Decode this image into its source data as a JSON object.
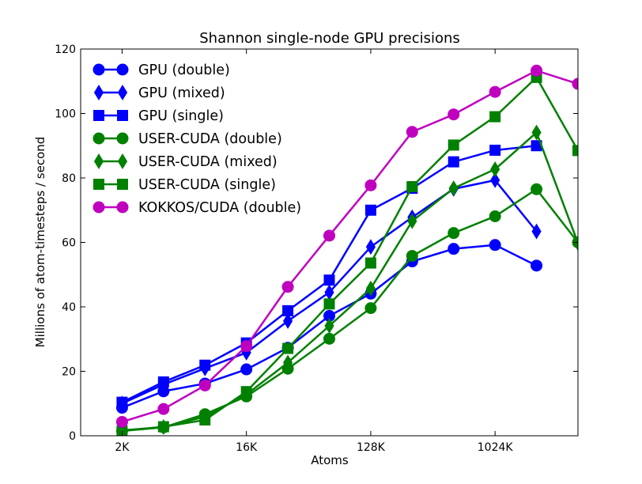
{
  "chart_data": {
    "type": "line",
    "title": "Shannon single-node GPU precisions",
    "xlabel": "Atoms",
    "ylabel": "Millions of atom-timesteps / second",
    "x_scale": "log2",
    "x_ticks": [
      {
        "value": 2,
        "label": "2K"
      },
      {
        "value": 16,
        "label": "16K"
      },
      {
        "value": 128,
        "label": "128K"
      },
      {
        "value": 1024,
        "label": "1024K"
      }
    ],
    "xlim": [
      1,
      4096
    ],
    "ylim": [
      0,
      120
    ],
    "y_ticks": [
      0,
      20,
      40,
      60,
      80,
      100,
      120
    ],
    "grid": false,
    "legend_position": "upper-left",
    "x": [
      2,
      4,
      8,
      16,
      32,
      64,
      128,
      256,
      512,
      1024,
      2048,
      4096
    ],
    "series": [
      {
        "name": "GPU (double)",
        "color": "#0000ff",
        "marker": "circle",
        "values": [
          8.7,
          13.8,
          16.2,
          20.6,
          27.3,
          37.2,
          44.1,
          54.1,
          58.0,
          59.2,
          52.8,
          null
        ]
      },
      {
        "name": "GPU (mixed)",
        "color": "#0000ff",
        "marker": "thin-diamond",
        "values": [
          10.0,
          15.9,
          20.9,
          25.8,
          35.6,
          44.5,
          58.6,
          67.8,
          76.6,
          79.3,
          63.4,
          null
        ]
      },
      {
        "name": "GPU (single)",
        "color": "#0000ff",
        "marker": "square",
        "values": [
          10.4,
          16.7,
          21.9,
          28.8,
          38.8,
          48.3,
          70.0,
          76.8,
          85.0,
          88.6,
          90.0,
          null
        ]
      },
      {
        "name": "USER-CUDA (double)",
        "color": "#008000",
        "marker": "circle",
        "values": [
          1.5,
          2.6,
          6.7,
          12.2,
          20.8,
          30.1,
          39.6,
          55.8,
          62.9,
          68.1,
          76.5,
          60.0
        ]
      },
      {
        "name": "USER-CUDA (mixed)",
        "color": "#008000",
        "marker": "thin-diamond",
        "values": [
          1.7,
          2.7,
          5.9,
          12.8,
          22.7,
          34.1,
          45.7,
          66.6,
          76.8,
          82.7,
          94.1,
          59.8
        ]
      },
      {
        "name": "USER-CUDA (single)",
        "color": "#008000",
        "marker": "square",
        "values": [
          1.5,
          2.8,
          4.9,
          13.7,
          27.1,
          40.9,
          53.6,
          77.3,
          90.2,
          99.0,
          111.2,
          88.5
        ]
      },
      {
        "name": "KOKKOS/CUDA (double)",
        "color": "#bf00bf",
        "marker": "circle",
        "values": [
          4.3,
          8.3,
          15.6,
          27.8,
          46.2,
          62.1,
          77.7,
          94.3,
          99.7,
          106.7,
          113.3,
          109.2
        ]
      }
    ]
  }
}
